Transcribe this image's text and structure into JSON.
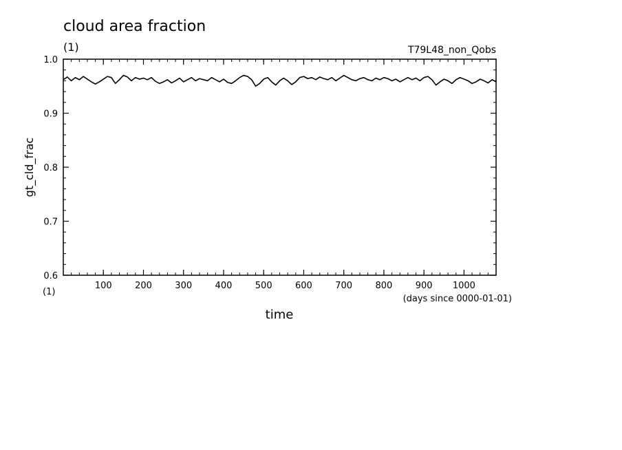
{
  "chart_data": {
    "type": "line",
    "title": "cloud area fraction",
    "title_unit": "(1)",
    "run_label": "T79L48_non_Qobs",
    "ylabel": "gt_cld_frac",
    "y_unit": "(1)",
    "xlabel": "time",
    "x_unit_note": "(days since 0000-01-01)",
    "xlim": [
      0,
      1080
    ],
    "ylim": [
      0.6,
      1.0
    ],
    "x_ticks": [
      100,
      200,
      300,
      400,
      500,
      600,
      700,
      800,
      900,
      1000
    ],
    "x_tick_labels": [
      "100",
      "200",
      "300",
      "400",
      "500",
      "600",
      "700",
      "800",
      "900",
      "1000"
    ],
    "y_ticks": [
      0.6,
      0.7,
      0.8,
      0.9,
      1.0
    ],
    "y_tick_labels": [
      "0.6",
      "0.7",
      "0.8",
      "0.9",
      "1.0"
    ],
    "grid": false,
    "series": [
      {
        "x": [
          0,
          10,
          20,
          30,
          40,
          50,
          60,
          70,
          80,
          90,
          100,
          110,
          120,
          130,
          140,
          150,
          160,
          170,
          180,
          190,
          200,
          210,
          220,
          230,
          240,
          250,
          260,
          270,
          280,
          290,
          300,
          310,
          320,
          330,
          340,
          350,
          360,
          370,
          380,
          390,
          400,
          410,
          420,
          430,
          440,
          450,
          460,
          470,
          480,
          490,
          500,
          510,
          520,
          530,
          540,
          550,
          560,
          570,
          580,
          590,
          600,
          610,
          620,
          630,
          640,
          650,
          660,
          670,
          680,
          690,
          700,
          710,
          720,
          730,
          740,
          750,
          760,
          770,
          780,
          790,
          800,
          810,
          820,
          830,
          840,
          850,
          860,
          870,
          880,
          890,
          900,
          910,
          920,
          930,
          940,
          950,
          960,
          970,
          980,
          990,
          1000,
          1010,
          1020,
          1030,
          1040,
          1050,
          1060,
          1070,
          1080
        ],
        "values": [
          0.962,
          0.967,
          0.96,
          0.966,
          0.962,
          0.968,
          0.963,
          0.958,
          0.954,
          0.958,
          0.963,
          0.968,
          0.966,
          0.955,
          0.962,
          0.97,
          0.967,
          0.96,
          0.966,
          0.963,
          0.965,
          0.962,
          0.966,
          0.959,
          0.955,
          0.958,
          0.962,
          0.956,
          0.96,
          0.965,
          0.958,
          0.962,
          0.966,
          0.96,
          0.964,
          0.962,
          0.96,
          0.966,
          0.962,
          0.958,
          0.963,
          0.957,
          0.955,
          0.96,
          0.966,
          0.97,
          0.968,
          0.962,
          0.95,
          0.955,
          0.963,
          0.966,
          0.958,
          0.952,
          0.96,
          0.965,
          0.96,
          0.953,
          0.958,
          0.966,
          0.968,
          0.964,
          0.966,
          0.962,
          0.967,
          0.964,
          0.962,
          0.966,
          0.96,
          0.965,
          0.97,
          0.966,
          0.962,
          0.96,
          0.964,
          0.966,
          0.962,
          0.96,
          0.965,
          0.962,
          0.966,
          0.964,
          0.96,
          0.963,
          0.958,
          0.962,
          0.966,
          0.962,
          0.965,
          0.96,
          0.966,
          0.968,
          0.962,
          0.952,
          0.958,
          0.963,
          0.96,
          0.955,
          0.962,
          0.966,
          0.963,
          0.96,
          0.955,
          0.958,
          0.963,
          0.96,
          0.956,
          0.962,
          0.958
        ]
      }
    ]
  },
  "colors": {
    "line": "#000000",
    "axis": "#000000",
    "background": "#ffffff"
  }
}
